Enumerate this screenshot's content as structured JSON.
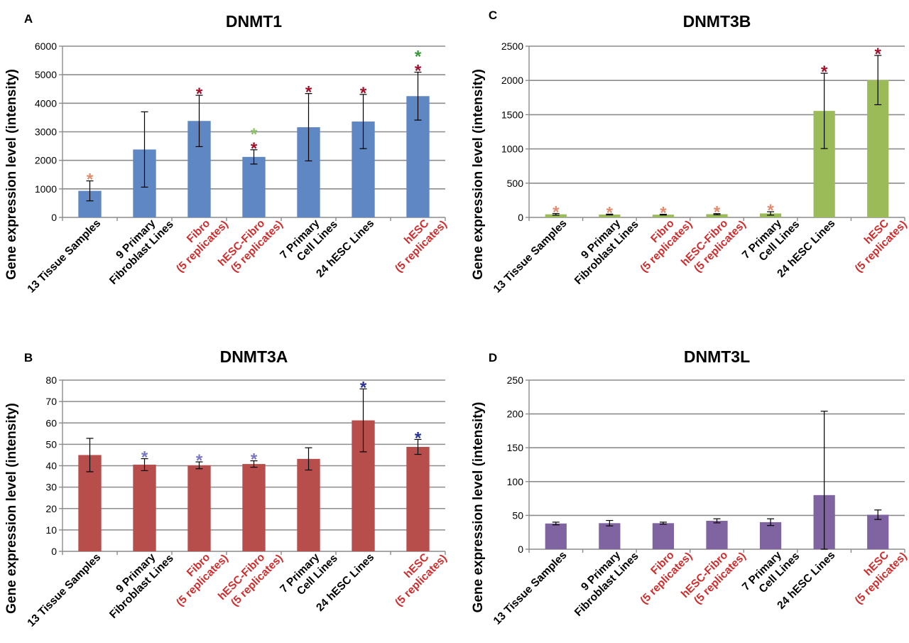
{
  "figure": {
    "categories": [
      {
        "line1": "13 Tissue Samples",
        "line2": "",
        "red": false
      },
      {
        "line1": "9 Primary",
        "line2": "Fibroblast Lines",
        "red": false
      },
      {
        "line1": "Fibro",
        "line2": "(5 replicates)",
        "red": true
      },
      {
        "line1": "hESC-Fibro",
        "line2": "(5 replicates)",
        "red": true
      },
      {
        "line1": "7 Primary",
        "line2": "Cell Lines",
        "red": false
      },
      {
        "line1": "24 hESC Lines",
        "line2": "",
        "red": false
      },
      {
        "line1": "hESC",
        "line2": "(5 replicates)",
        "red": true
      }
    ],
    "colors": {
      "category_red": "#d22b2b",
      "category_black": "#000000",
      "grid": "#8c8c8c",
      "star_dark_red": "#a0102a",
      "star_salmon": "#e38b6e",
      "star_green_light": "#8cc26a",
      "star_green_dark": "#3a9a3a",
      "star_blue_light": "#7a78c4",
      "star_blue_dark": "#26319a"
    }
  },
  "chart_data": [
    {
      "panel": "A",
      "type": "bar",
      "title": "DNMT1",
      "ylabel": "Gene expression level (intensity)",
      "xlabel": "",
      "ylim": [
        0,
        6000
      ],
      "yticks": [
        0,
        1000,
        2000,
        3000,
        4000,
        5000,
        6000
      ],
      "bar_color": "#5f87c4",
      "values": [
        930,
        2380,
        3380,
        2120,
        3160,
        3360,
        4250
      ],
      "errors": [
        350,
        1320,
        900,
        250,
        1180,
        950,
        840
      ],
      "stars": [
        [
          "star_salmon"
        ],
        [],
        [
          "star_dark_red"
        ],
        [
          "star_dark_red",
          "star_green_light"
        ],
        [
          "star_dark_red"
        ],
        [
          "star_dark_red"
        ],
        [
          "star_dark_red",
          "star_green_dark"
        ]
      ]
    },
    {
      "panel": "B",
      "type": "bar",
      "title": "DNMT3A",
      "ylabel": "Gene expression level (intensity)",
      "xlabel": "",
      "ylim": [
        0,
        80
      ],
      "yticks": [
        0,
        10,
        20,
        30,
        40,
        50,
        60,
        70,
        80
      ],
      "bar_color": "#b84e4c",
      "values": [
        45,
        40.5,
        40.2,
        40.8,
        43.2,
        61.2,
        48.8
      ],
      "errors": [
        7.8,
        2.8,
        1.6,
        1.5,
        5.2,
        14.7,
        3.5
      ],
      "stars": [
        [],
        [
          "star_blue_light"
        ],
        [
          "star_blue_light"
        ],
        [
          "star_blue_light"
        ],
        [],
        [
          "star_blue_dark"
        ],
        [
          "star_blue_dark"
        ]
      ]
    },
    {
      "panel": "C",
      "type": "bar",
      "title": "DNMT3B",
      "ylabel": "Gene expression level (intensity)",
      "xlabel": "",
      "ylim": [
        0,
        2500
      ],
      "yticks": [
        0,
        500,
        1000,
        1500,
        2000,
        2500
      ],
      "bar_color": "#9bbb59",
      "values": [
        45,
        42,
        40,
        47,
        58,
        1555,
        2005
      ],
      "errors": [
        12,
        6,
        6,
        8,
        25,
        550,
        360
      ],
      "stars": [
        [
          "star_salmon"
        ],
        [
          "star_salmon"
        ],
        [
          "star_salmon"
        ],
        [
          "star_salmon"
        ],
        [
          "star_salmon"
        ],
        [
          "star_dark_red"
        ],
        [
          "star_dark_red"
        ]
      ]
    },
    {
      "panel": "D",
      "type": "bar",
      "title": "DNMT3L",
      "ylabel": "Gene expression level (intensity)",
      "xlabel": "",
      "ylim": [
        0,
        250
      ],
      "yticks": [
        0,
        50,
        100,
        150,
        200,
        250
      ],
      "bar_color": "#8064a2",
      "values": [
        38,
        38.5,
        38.5,
        42,
        40,
        80,
        51
      ],
      "errors": [
        2,
        4,
        1.5,
        3,
        5,
        124,
        7
      ],
      "stars": [
        [],
        [],
        [],
        [],
        [],
        [],
        []
      ]
    }
  ]
}
